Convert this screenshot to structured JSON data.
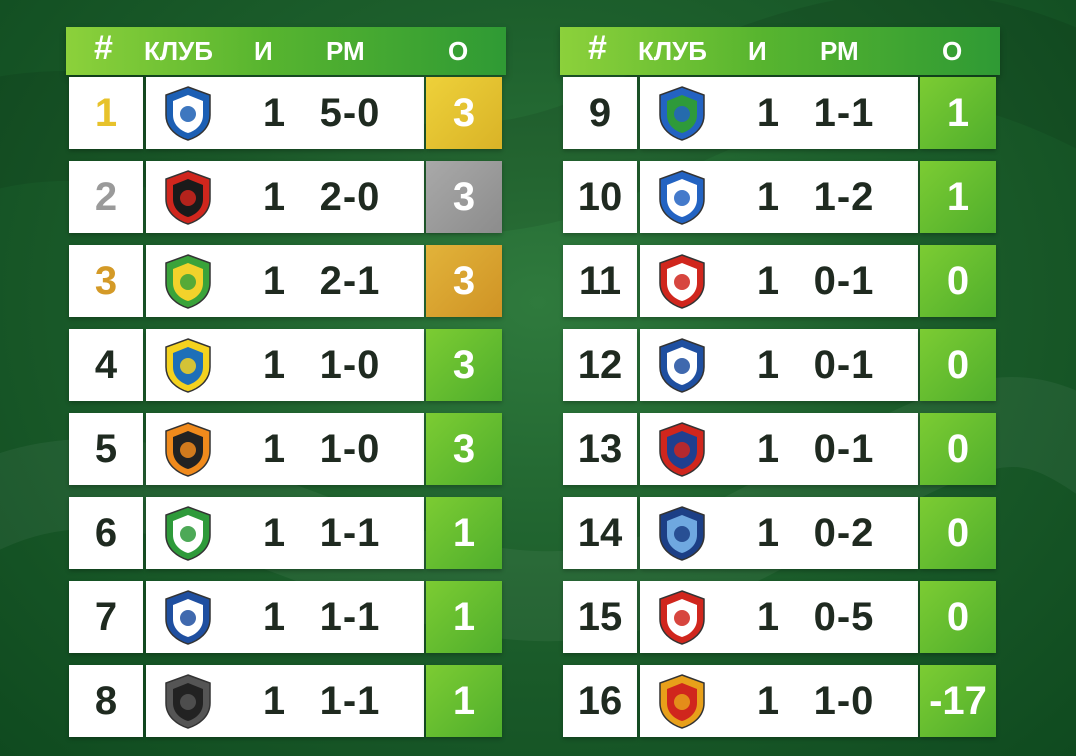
{
  "headers": {
    "hash": "#",
    "club": "КЛУБ",
    "games": "И",
    "score": "РМ",
    "points": "О"
  },
  "left_rows": [
    {
      "pos": "1",
      "games": "1",
      "score": "5-0",
      "points": "3",
      "medal": "gold",
      "logo": "dinamo-minsk-logo",
      "colors": [
        "#1c5fb4",
        "#ffffff"
      ]
    },
    {
      "pos": "2",
      "games": "1",
      "score": "2-0",
      "points": "3",
      "medal": "silver",
      "logo": "slavia-logo",
      "colors": [
        "#d0261d",
        "#1a1a1a"
      ]
    },
    {
      "pos": "3",
      "games": "1",
      "score": "2-1",
      "points": "3",
      "medal": "bronze",
      "logo": "neman-logo",
      "colors": [
        "#3aa33a",
        "#f2d22b"
      ]
    },
    {
      "pos": "4",
      "games": "1",
      "score": "1-0",
      "points": "3",
      "medal": "",
      "logo": "bate-logo",
      "colors": [
        "#f4d21e",
        "#1d6fb8"
      ]
    },
    {
      "pos": "5",
      "games": "1",
      "score": "1-0",
      "points": "3",
      "medal": "",
      "logo": "torpedo-logo",
      "colors": [
        "#f08a1c",
        "#222222"
      ]
    },
    {
      "pos": "6",
      "games": "1",
      "score": "1-1",
      "points": "1",
      "medal": "",
      "logo": "gomel-logo",
      "colors": [
        "#2e9a3a",
        "#ffffff"
      ]
    },
    {
      "pos": "7",
      "games": "1",
      "score": "1-1",
      "points": "1",
      "medal": "",
      "logo": "dynamo-brest-logo",
      "colors": [
        "#1f4fa0",
        "#ffffff"
      ]
    },
    {
      "pos": "8",
      "games": "1",
      "score": "1-1",
      "points": "1",
      "medal": "",
      "logo": "isloch-logo",
      "colors": [
        "#555555",
        "#222222"
      ]
    }
  ],
  "right_rows": [
    {
      "pos": "9",
      "games": "1",
      "score": "1-1",
      "points": "1",
      "medal": "",
      "logo": "belshina-logo",
      "colors": [
        "#2363c2",
        "#2e9a3a"
      ]
    },
    {
      "pos": "10",
      "games": "1",
      "score": "1-2",
      "points": "1",
      "medal": "",
      "logo": "smorgon-logo",
      "colors": [
        "#2363c2",
        "#ffffff"
      ]
    },
    {
      "pos": "11",
      "games": "1",
      "score": "0-1",
      "points": "0",
      "medal": "",
      "logo": "arsenal-logo",
      "colors": [
        "#d0261d",
        "#ffffff"
      ]
    },
    {
      "pos": "12",
      "games": "1",
      "score": "0-1",
      "points": "0",
      "medal": "",
      "logo": "vitebsk-logo",
      "colors": [
        "#1f4fa0",
        "#ffffff"
      ]
    },
    {
      "pos": "13",
      "games": "1",
      "score": "0-1",
      "points": "0",
      "medal": "",
      "logo": "fc-minsk-logo",
      "colors": [
        "#d0261d",
        "#1f3f8f"
      ]
    },
    {
      "pos": "14",
      "games": "1",
      "score": "0-2",
      "points": "0",
      "medal": "",
      "logo": "dnepr-logo",
      "colors": [
        "#1c3f86",
        "#6fa8e0"
      ]
    },
    {
      "pos": "15",
      "games": "1",
      "score": "0-5",
      "points": "0",
      "medal": "",
      "logo": "naftan-logo",
      "colors": [
        "#d0261d",
        "#ffffff"
      ]
    },
    {
      "pos": "16",
      "games": "1",
      "score": "1-0",
      "points": "-17",
      "medal": "",
      "logo": "shakhtyor-logo",
      "colors": [
        "#e8a01a",
        "#d0261d"
      ]
    }
  ]
}
